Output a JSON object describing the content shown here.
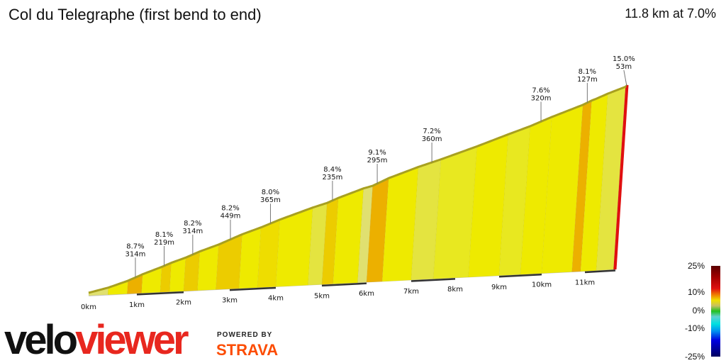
{
  "header": {
    "title": "Col du Telegraphe (first bend to end)",
    "summary": "11.8 km at 7.0%"
  },
  "chart_data": {
    "type": "area",
    "title": "Col du Telegraphe (first bend to end)",
    "xlabel": "",
    "ylabel": "",
    "distance_km": 11.8,
    "average_gradient_pct": 7.0,
    "x_ticks": [
      "0km",
      "1km",
      "2km",
      "3km",
      "4km",
      "5km",
      "6km",
      "7km",
      "8km",
      "9km",
      "10km",
      "11km"
    ],
    "segments": [
      {
        "from": 0,
        "to": 0.4,
        "gradient": 5
      },
      {
        "from": 0.4,
        "to": 0.8,
        "gradient": 7
      },
      {
        "from": 0.8,
        "to": 1.1,
        "gradient": 9
      },
      {
        "from": 1.1,
        "to": 1.5,
        "gradient": 7.5
      },
      {
        "from": 1.5,
        "to": 1.7,
        "gradient": 8.5
      },
      {
        "from": 1.7,
        "to": 2.0,
        "gradient": 7
      },
      {
        "from": 2.0,
        "to": 2.3,
        "gradient": 8.5
      },
      {
        "from": 2.3,
        "to": 2.7,
        "gradient": 7
      },
      {
        "from": 2.7,
        "to": 3.2,
        "gradient": 8.5
      },
      {
        "from": 3.2,
        "to": 3.6,
        "gradient": 7
      },
      {
        "from": 3.6,
        "to": 4.0,
        "gradient": 8
      },
      {
        "from": 4.0,
        "to": 4.7,
        "gradient": 7
      },
      {
        "from": 4.7,
        "to": 5.0,
        "gradient": 6
      },
      {
        "from": 5.0,
        "to": 5.25,
        "gradient": 8.4
      },
      {
        "from": 5.25,
        "to": 5.8,
        "gradient": 7
      },
      {
        "from": 5.8,
        "to": 6.0,
        "gradient": 5
      },
      {
        "from": 6.0,
        "to": 6.35,
        "gradient": 9.1
      },
      {
        "from": 6.35,
        "to": 7.0,
        "gradient": 7
      },
      {
        "from": 7.0,
        "to": 7.5,
        "gradient": 6
      },
      {
        "from": 7.5,
        "to": 8.3,
        "gradient": 6.5
      },
      {
        "from": 8.3,
        "to": 9.0,
        "gradient": 7
      },
      {
        "from": 9.0,
        "to": 9.5,
        "gradient": 6.5
      },
      {
        "from": 9.5,
        "to": 10.0,
        "gradient": 7.6
      },
      {
        "from": 10.0,
        "to": 10.7,
        "gradient": 7
      },
      {
        "from": 10.7,
        "to": 10.9,
        "gradient": 9
      },
      {
        "from": 10.9,
        "to": 11.3,
        "gradient": 7
      },
      {
        "from": 11.3,
        "to": 11.75,
        "gradient": 6
      },
      {
        "from": 11.75,
        "to": 11.8,
        "gradient": 15
      }
    ],
    "annotations": [
      {
        "km": 0.95,
        "gradient": "8.7%",
        "length": "314m"
      },
      {
        "km": 1.55,
        "gradient": "8.1%",
        "length": "219m"
      },
      {
        "km": 2.15,
        "gradient": "8.2%",
        "length": "314m"
      },
      {
        "km": 2.95,
        "gradient": "8.2%",
        "length": "449m"
      },
      {
        "km": 3.8,
        "gradient": "8.0%",
        "length": "365m"
      },
      {
        "km": 5.12,
        "gradient": "8.4%",
        "length": "235m"
      },
      {
        "km": 6.1,
        "gradient": "9.1%",
        "length": "295m"
      },
      {
        "km": 7.3,
        "gradient": "7.2%",
        "length": "360m"
      },
      {
        "km": 9.75,
        "gradient": "7.6%",
        "length": "320m"
      },
      {
        "km": 10.8,
        "gradient": "8.1%",
        "length": "127m"
      },
      {
        "km": 11.78,
        "gradient": "15.0%",
        "length": "53m"
      }
    ],
    "legend": {
      "labels": [
        "25%",
        "10%",
        "0%",
        "-10%",
        "-25%"
      ],
      "placement": "bottom-right"
    }
  },
  "branding": {
    "logo_part1": "velo",
    "logo_part2": "viewer",
    "powered_by": "POWERED BY",
    "strava": "STRAVA"
  }
}
